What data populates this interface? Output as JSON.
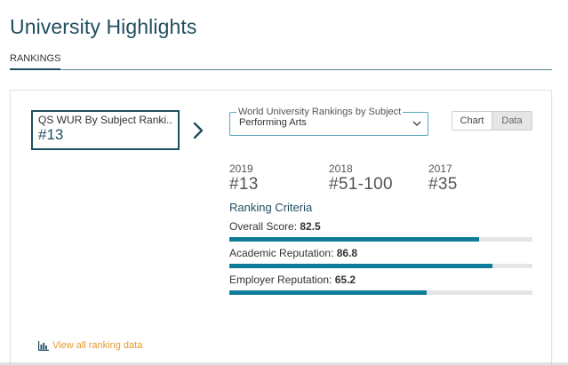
{
  "page": {
    "title": "University Highlights",
    "tab": "RANKINGS"
  },
  "qs_box": {
    "title": "QS WUR By Subject Ranki...",
    "rank": "#13"
  },
  "subject_select": {
    "label": "World University Rankings by Subject",
    "value": "Performing Arts"
  },
  "view_toggle": {
    "chart": "Chart",
    "data": "Data",
    "selected": "Chart"
  },
  "years": [
    {
      "year": "2019",
      "rank": "#13"
    },
    {
      "year": "2018",
      "rank": "#51-100"
    },
    {
      "year": "2017",
      "rank": "#35"
    }
  ],
  "criteria": {
    "title": "Ranking Criteria",
    "items": [
      {
        "label": "Overall Score:",
        "value": "82.5",
        "score": 82.5
      },
      {
        "label": "Academic Reputation:",
        "value": "86.8",
        "score": 86.8
      },
      {
        "label": "Employer Reputation:",
        "value": "65.2",
        "score": 65.2
      }
    ]
  },
  "link": {
    "view_all": "View all ranking data"
  },
  "colors": {
    "brand": "#1f4e5f",
    "bar": "#0e7c99",
    "link": "#e8992b"
  }
}
